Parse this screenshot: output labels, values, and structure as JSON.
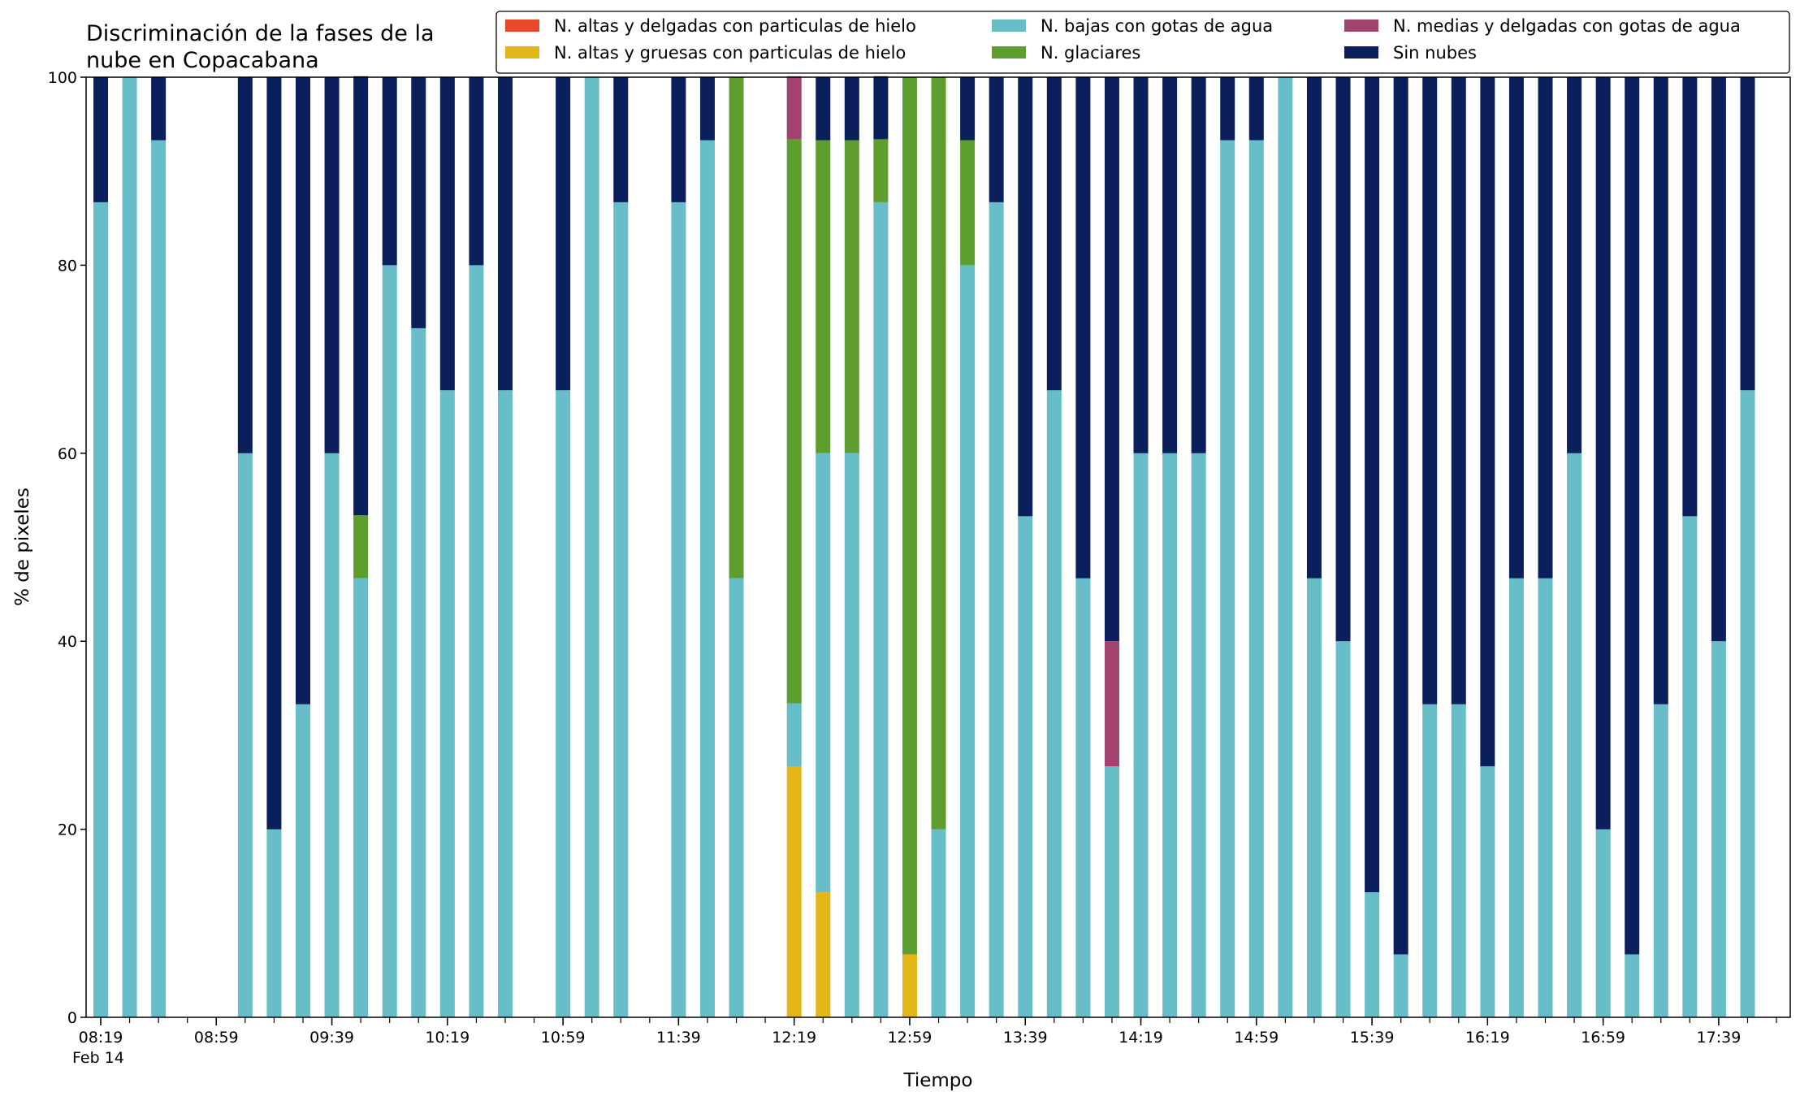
{
  "chart_data": {
    "type": "bar",
    "stacked": true,
    "title_lines": [
      "Discriminación de la fases de la",
      "nube en Copacabana"
    ],
    "xlabel": "Tiempo",
    "ylabel": "% de pixeles",
    "ylim": [
      0,
      100
    ],
    "yticks": [
      0,
      20,
      40,
      60,
      80,
      100
    ],
    "x_tick_labels": [
      "08:19",
      "08:59",
      "09:39",
      "10:19",
      "10:59",
      "11:39",
      "12:19",
      "12:59",
      "13:39",
      "14:19",
      "14:59",
      "15:39",
      "16:19",
      "16:59",
      "17:39"
    ],
    "x_date_label": "Feb 14",
    "legend_position": "top-right",
    "categories": [
      "08:19",
      "08:29",
      "08:39",
      "08:49",
      "08:59",
      "09:09",
      "09:19",
      "09:29",
      "09:39",
      "09:49",
      "09:59",
      "10:09",
      "10:19",
      "10:29",
      "10:39",
      "10:49",
      "10:59",
      "11:09",
      "11:19",
      "11:29",
      "11:39",
      "11:49",
      "11:59",
      "12:09",
      "12:19",
      "12:29",
      "12:39",
      "12:49",
      "12:59",
      "13:09",
      "13:19",
      "13:29",
      "13:39",
      "13:49",
      "13:59",
      "14:09",
      "14:19",
      "14:29",
      "14:39",
      "14:49",
      "14:59",
      "15:09",
      "15:19",
      "15:29",
      "15:39",
      "15:49",
      "15:59",
      "16:09",
      "16:19",
      "16:29",
      "16:39",
      "16:49",
      "16:59",
      "17:09",
      "17:19",
      "17:29",
      "17:39",
      "17:49"
    ],
    "series": [
      {
        "name": "N. altas y delgadas con particulas de hielo",
        "color": "#e8492a",
        "values": [
          0,
          0,
          0,
          0,
          0,
          0,
          0,
          0,
          0,
          0,
          0,
          0,
          0,
          0,
          0,
          0,
          0,
          0,
          0,
          0,
          0,
          0,
          0,
          0,
          0,
          0,
          0,
          0,
          0,
          0,
          0,
          0,
          0,
          0,
          0,
          0,
          0,
          0,
          0,
          0,
          0,
          0,
          0,
          0,
          0,
          0,
          0,
          0,
          0,
          0,
          0,
          0,
          0,
          0,
          0,
          0,
          0,
          0
        ]
      },
      {
        "name": "N. altas y gruesas con particulas de hielo",
        "color": "#e3b617",
        "values": [
          0,
          0,
          0,
          0,
          0,
          0,
          0,
          0,
          0,
          0,
          0,
          0,
          0,
          0,
          0,
          0,
          0,
          0,
          0,
          0,
          0,
          0,
          0,
          0,
          26.7,
          13.3,
          0,
          0,
          6.7,
          0,
          0,
          0,
          0,
          0,
          0,
          0,
          0,
          0,
          0,
          0,
          0,
          0,
          0,
          0,
          0,
          0,
          0,
          0,
          0,
          0,
          0,
          0,
          0,
          0,
          0,
          0,
          0,
          0
        ]
      },
      {
        "name": "N. bajas con gotas de agua",
        "color": "#67bec9",
        "values": [
          86.7,
          100,
          93.3,
          0,
          0,
          60,
          20,
          33.3,
          60,
          46.7,
          80,
          73.3,
          66.7,
          80,
          66.7,
          0,
          66.7,
          100,
          86.7,
          0,
          86.7,
          93.3,
          46.7,
          0,
          6.7,
          46.7,
          60,
          86.7,
          0,
          20,
          80,
          86.7,
          53.3,
          66.7,
          46.7,
          26.7,
          60,
          60,
          60,
          93.3,
          93.3,
          100,
          46.7,
          40,
          13.3,
          6.7,
          33.3,
          33.3,
          26.7,
          46.7,
          46.7,
          60,
          20,
          6.7,
          33.3,
          53.3,
          40,
          66.7
        ]
      },
      {
        "name": "N. glaciares",
        "color": "#5e9e2f",
        "values": [
          0,
          0,
          0,
          0,
          0,
          0,
          0,
          0,
          0,
          6.7,
          0,
          0,
          0,
          0,
          0,
          0,
          0,
          0,
          0,
          0,
          0,
          0,
          53.3,
          0,
          60,
          33.3,
          33.3,
          6.7,
          93.3,
          80,
          13.3,
          0,
          0,
          0,
          0,
          0,
          0,
          0,
          0,
          0,
          0,
          0,
          0,
          0,
          0,
          0,
          0,
          0,
          0,
          0,
          0,
          0,
          0,
          0,
          0,
          0,
          0,
          0
        ]
      },
      {
        "name": "N. medias y delgadas con gotas de agua",
        "color": "#a2436f",
        "values": [
          0,
          0,
          0,
          0,
          0,
          0,
          0,
          0,
          0,
          0,
          0,
          0,
          0,
          0,
          0,
          0,
          0,
          0,
          0,
          0,
          0,
          0,
          0,
          0,
          6.7,
          0,
          0,
          0,
          0,
          0,
          0,
          0,
          0,
          0,
          0,
          13.3,
          0,
          0,
          0,
          0,
          0,
          0,
          0,
          0,
          0,
          0,
          0,
          0,
          0,
          0,
          0,
          0,
          0,
          0,
          0,
          0,
          0,
          0
        ]
      },
      {
        "name": "Sin nubes",
        "color": "#0b1f5c",
        "values": [
          13.3,
          0,
          6.7,
          0,
          0,
          40,
          80,
          66.7,
          40,
          46.7,
          20,
          26.7,
          33.3,
          20,
          33.3,
          0,
          33.3,
          0,
          13.3,
          0,
          13.3,
          6.7,
          0,
          0,
          0,
          6.7,
          6.7,
          6.7,
          0,
          0,
          6.7,
          13.3,
          46.7,
          33.3,
          53.3,
          60,
          40,
          40,
          40,
          6.7,
          6.7,
          0,
          53.3,
          60,
          86.7,
          93.3,
          66.7,
          66.7,
          73.3,
          53.3,
          53.3,
          40,
          80,
          93.3,
          66.7,
          46.7,
          60,
          33.3
        ]
      }
    ]
  }
}
